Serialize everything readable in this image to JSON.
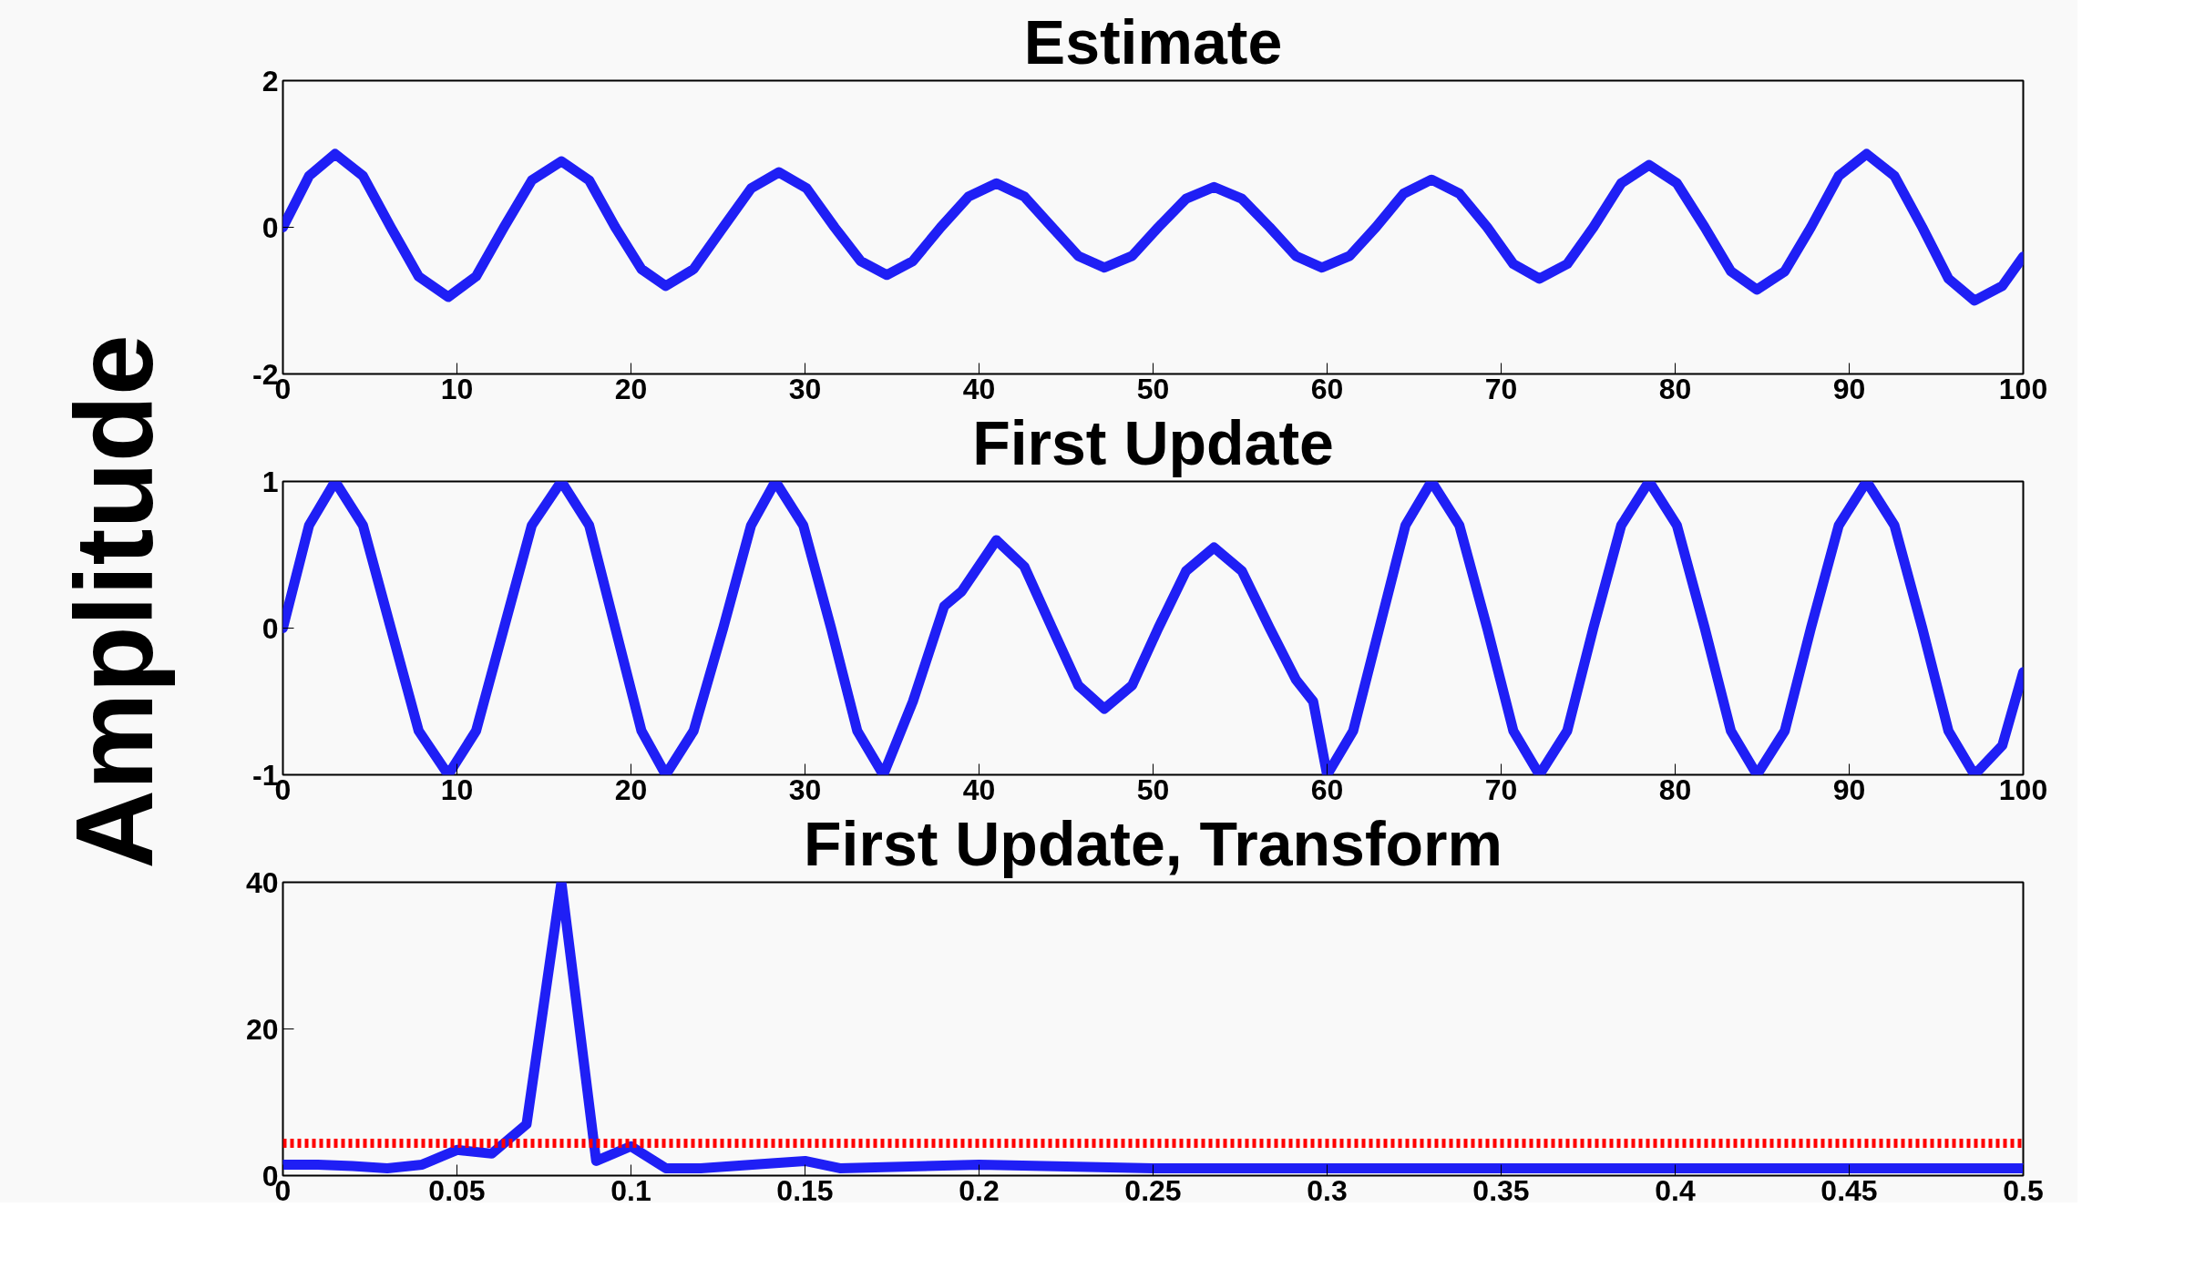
{
  "chart_data": [
    {
      "type": "line",
      "title": "Estimate",
      "xlim": [
        0,
        100
      ],
      "ylim": [
        -2,
        2
      ],
      "xticks": [
        0,
        10,
        20,
        30,
        40,
        50,
        60,
        70,
        80,
        90,
        100
      ],
      "yticks": [
        -2,
        0,
        2
      ],
      "grid": false,
      "x": [
        0,
        1.5,
        3,
        4.6,
        6.2,
        7.8,
        9.5,
        11.1,
        12.7,
        14.3,
        16,
        17.6,
        19.1,
        20.6,
        22,
        23.6,
        25.3,
        26.9,
        28.5,
        30.1,
        31.7,
        33.2,
        34.7,
        36.2,
        37.8,
        39.4,
        41,
        42.6,
        44.2,
        45.7,
        47.2,
        48.8,
        50.3,
        51.9,
        53.5,
        55.1,
        56.7,
        58.2,
        59.7,
        61.3,
        62.8,
        64.4,
        66,
        67.6,
        69.2,
        70.7,
        72.2,
        73.8,
        75.3,
        76.9,
        78.5,
        80.1,
        81.7,
        83.2,
        84.7,
        86.3,
        87.8,
        89.4,
        91,
        92.6,
        94.2,
        95.7,
        97.2,
        98.8,
        100
      ],
      "series": [
        {
          "color": "#1f1ff5",
          "values": [
            0,
            0.7,
            1,
            0.7,
            0,
            -0.67,
            -0.95,
            -0.67,
            0,
            0.64,
            0.9,
            0.64,
            0,
            -0.57,
            -0.8,
            -0.57,
            0,
            0.53,
            0.75,
            0.53,
            0,
            -0.46,
            -0.65,
            -0.46,
            0,
            0.42,
            0.6,
            0.42,
            0,
            -0.39,
            -0.55,
            -0.39,
            0,
            0.39,
            0.55,
            0.39,
            0,
            -0.39,
            -0.55,
            -0.39,
            0,
            0.46,
            0.65,
            0.46,
            0,
            -0.5,
            -0.7,
            -0.5,
            0,
            0.6,
            0.85,
            0.6,
            0,
            -0.6,
            -0.85,
            -0.6,
            0,
            0.7,
            1,
            0.7,
            0,
            -0.7,
            -1,
            -0.8,
            -0.4
          ]
        }
      ]
    },
    {
      "type": "line",
      "title": "First Update",
      "ylabel": "Amplitude",
      "xlim": [
        0,
        100
      ],
      "ylim": [
        -1,
        1
      ],
      "xticks": [
        0,
        10,
        20,
        30,
        40,
        50,
        60,
        70,
        80,
        90,
        100
      ],
      "yticks": [
        -1,
        0,
        1
      ],
      "grid": false,
      "x": [
        0,
        1.5,
        3,
        4.6,
        6.2,
        7.8,
        9.5,
        11.1,
        12.7,
        14.3,
        16,
        17.6,
        19.1,
        20.6,
        22,
        23.6,
        25.3,
        26.9,
        28.3,
        29.9,
        31.5,
        33,
        34.5,
        36.2,
        38,
        39,
        41,
        42.6,
        44.2,
        45.7,
        47.2,
        48.8,
        50.3,
        51.9,
        53.5,
        55.1,
        56.7,
        58.2,
        59.2,
        60,
        61.5,
        63,
        64.5,
        66,
        67.6,
        69.2,
        70.7,
        72.2,
        73.8,
        75.3,
        76.9,
        78.5,
        80.1,
        81.7,
        83.2,
        84.7,
        86.3,
        87.8,
        89.4,
        91,
        92.6,
        94.2,
        95.7,
        97.2,
        98.8,
        100
      ],
      "series": [
        {
          "color": "#1f1ff5",
          "values": [
            0,
            0.7,
            1,
            0.7,
            0,
            -0.7,
            -1,
            -0.7,
            0,
            0.7,
            1,
            0.7,
            0,
            -0.7,
            -1,
            -0.7,
            0,
            0.7,
            1,
            0.7,
            0,
            -0.7,
            -1,
            -0.5,
            0.15,
            0.25,
            0.6,
            0.42,
            0,
            -0.39,
            -0.55,
            -0.39,
            0,
            0.39,
            0.55,
            0.39,
            0,
            -0.35,
            -0.5,
            -1,
            -0.7,
            0,
            0.7,
            1,
            0.7,
            0,
            -0.7,
            -1,
            -0.7,
            0,
            0.7,
            1,
            0.7,
            0,
            -0.7,
            -1,
            -0.7,
            0,
            0.7,
            1,
            0.7,
            0,
            -0.7,
            -1,
            -0.8,
            -0.3
          ]
        }
      ]
    },
    {
      "type": "line",
      "title": "First Update, Transform",
      "xlim": [
        0,
        0.5
      ],
      "ylim": [
        0,
        40
      ],
      "xticks": [
        0,
        0.05,
        0.1,
        0.15,
        0.2,
        0.25,
        0.3,
        0.35,
        0.4,
        0.45,
        0.5
      ],
      "yticks": [
        0,
        20,
        40
      ],
      "grid": false,
      "x": [
        0,
        0.01,
        0.02,
        0.03,
        0.04,
        0.05,
        0.06,
        0.07,
        0.08,
        0.09,
        0.1,
        0.11,
        0.12,
        0.15,
        0.16,
        0.2,
        0.25,
        0.3,
        0.35,
        0.4,
        0.45,
        0.5
      ],
      "series": [
        {
          "color": "#1f1ff5",
          "values": [
            1.5,
            1.5,
            1.3,
            1,
            1.5,
            3.5,
            3,
            7,
            40,
            2,
            4,
            1,
            1,
            2,
            1,
            1.5,
            1,
            1,
            1,
            1,
            1,
            1
          ]
        }
      ],
      "ref_lines": [
        {
          "axis": "y",
          "value": 4.4,
          "color": "#ff0000",
          "line_style": "dotted"
        }
      ]
    }
  ]
}
